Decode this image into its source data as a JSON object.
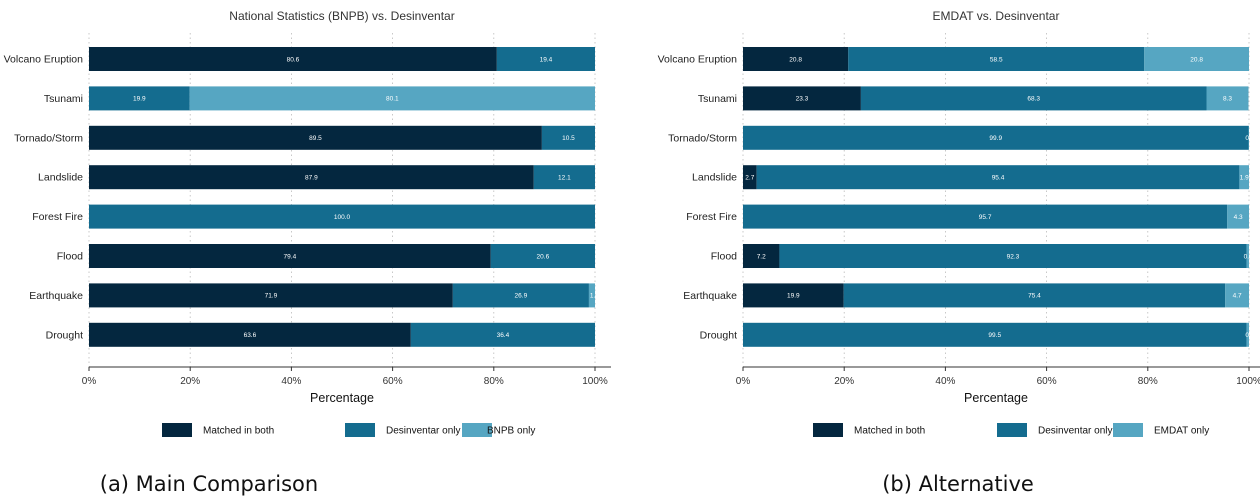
{
  "colors": {
    "matched": "#04273f",
    "desinventar": "#146c8f",
    "other": "#56a6c2",
    "grid": "#bbbbbb",
    "axis": "#333333"
  },
  "chart_data": [
    {
      "type": "bar",
      "orientation": "horizontal",
      "stacked": true,
      "title": "National Statistics (BNPB) vs. Desinventar",
      "xlabel": "Percentage",
      "ylabel": "",
      "xlim": [
        0,
        100
      ],
      "x_ticks": [
        "0%",
        "20%",
        "40%",
        "60%",
        "80%",
        "100%"
      ],
      "grid": "vertical dotted",
      "legend_position": "bottom",
      "caption": "(a) Main Comparison",
      "categories": [
        "Volcano Eruption",
        "Tsunami",
        "Tornado/Storm",
        "Landslide",
        "Forest Fire",
        "Flood",
        "Earthquake",
        "Drought"
      ],
      "series": [
        {
          "name": "Matched in both",
          "color": "matched",
          "values": [
            80.6,
            0.0,
            89.5,
            87.9,
            0.0,
            79.4,
            71.9,
            63.6
          ],
          "labels": [
            "80.6",
            "",
            "89.5",
            "87.9",
            "",
            "79.4",
            "71.9",
            "63.6"
          ]
        },
        {
          "name": "Desinventar only",
          "color": "desinventar",
          "values": [
            19.4,
            19.9,
            10.5,
            12.1,
            100.0,
            20.6,
            26.9,
            36.4
          ],
          "labels": [
            "19.4",
            "19.9",
            "10.5",
            "12.1",
            "100.0",
            "20.6",
            "26.9",
            "36.4"
          ]
        },
        {
          "name": "BNPB only",
          "color": "other",
          "values": [
            0.0,
            80.1,
            0.0,
            0.0,
            0.0,
            0.0,
            1.2,
            0.0
          ],
          "labels": [
            "",
            "80.1",
            "",
            "",
            "",
            "",
            "1.2",
            ""
          ]
        }
      ]
    },
    {
      "type": "bar",
      "orientation": "horizontal",
      "stacked": true,
      "title": "EMDAT vs. Desinventar",
      "xlabel": "Percentage",
      "ylabel": "",
      "xlim": [
        0,
        100
      ],
      "x_ticks": [
        "0%",
        "20%",
        "40%",
        "60%",
        "80%",
        "100%"
      ],
      "grid": "vertical dotted",
      "legend_position": "bottom",
      "caption": "(b) Alternative",
      "categories": [
        "Volcano Eruption",
        "Tsunami",
        "Tornado/Storm",
        "Landslide",
        "Forest Fire",
        "Flood",
        "Earthquake",
        "Drought"
      ],
      "series": [
        {
          "name": "Matched in both",
          "color": "matched",
          "values": [
            20.8,
            23.3,
            0.0,
            2.7,
            0.0,
            7.2,
            19.9,
            0.0
          ],
          "labels": [
            "20.8",
            "23.3",
            "",
            "2.7",
            "",
            "7.2",
            "19.9",
            ""
          ]
        },
        {
          "name": "Desinventar only",
          "color": "desinventar",
          "values": [
            58.5,
            68.3,
            99.9,
            95.4,
            95.7,
            92.3,
            75.4,
            99.5
          ],
          "labels": [
            "58.5",
            "68.3",
            "99.9",
            "95.4",
            "95.7",
            "92.3",
            "75.4",
            "99.5"
          ]
        },
        {
          "name": "EMDAT only",
          "color": "other",
          "values": [
            20.8,
            8.3,
            0.1,
            1.9,
            4.3,
            0.5,
            4.7,
            0.5
          ],
          "labels": [
            "20.8",
            "8.3",
            "0",
            "1.9",
            "4.3",
            "0.",
            "4.7",
            "0"
          ]
        }
      ]
    }
  ]
}
